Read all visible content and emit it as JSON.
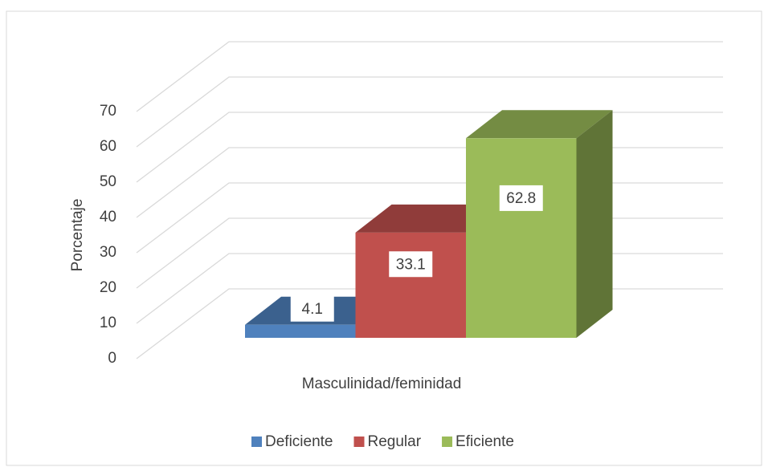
{
  "chart_data": {
    "type": "bar3d",
    "ylabel": "Porcentaje",
    "categories": [
      "Masculinidad/feminidad"
    ],
    "series": [
      {
        "name": "Deficiente",
        "color": "#4f81bd",
        "values": [
          4.1
        ]
      },
      {
        "name": "Regular",
        "color": "#c0504d",
        "values": [
          33.1
        ]
      },
      {
        "name": "Eficiente",
        "color": "#9bbb59",
        "values": [
          62.8
        ]
      }
    ],
    "ylim": [
      0,
      70
    ],
    "yticks": [
      0,
      10,
      20,
      30,
      40,
      50,
      60,
      70
    ],
    "grid": true,
    "legend": "bottom"
  }
}
